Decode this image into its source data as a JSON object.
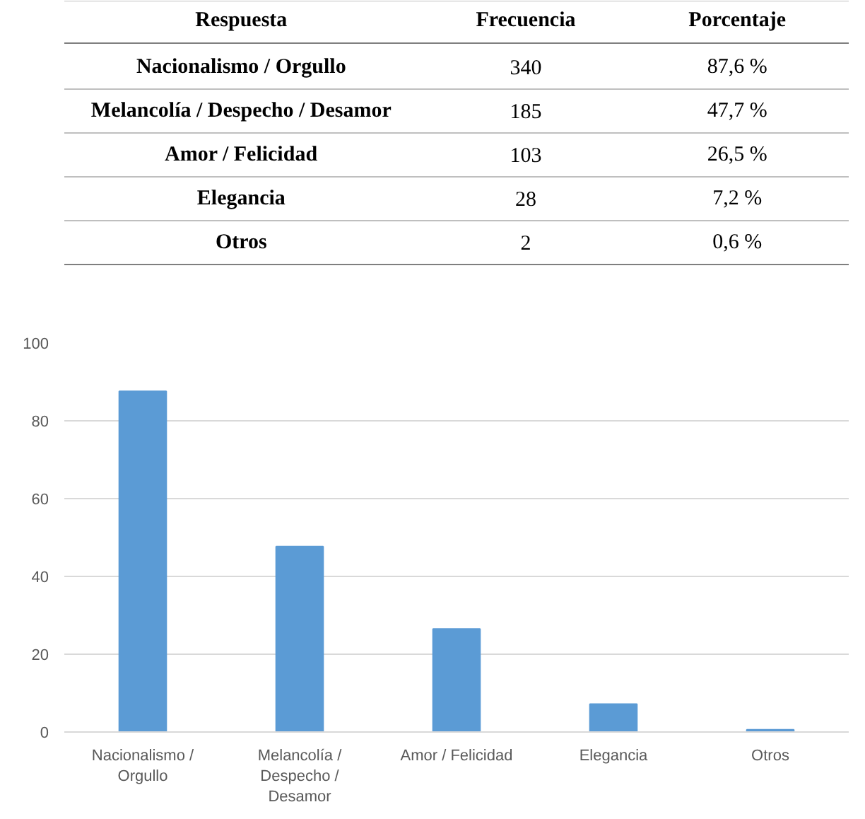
{
  "chart_data": [
    {
      "type": "other",
      "xlabel": "Respuesta",
      "categories": [
        "Nacionalismo / Orgullo",
        "Melancolía / Despecho / Desamor",
        "Amor / Felicidad",
        "Elegancia",
        "Otros"
      ],
      "data_labels": true,
      "series": [
        {
          "name": "Frecuencia",
          "values": [
            340,
            185,
            103,
            28,
            2
          ]
        },
        {
          "name": "Porcentaje",
          "values": [
            87.6,
            47.7,
            26.5,
            7.2,
            0.6
          ],
          "value_labels": [
            "87,6 %",
            "47,7 %",
            "26,5 %",
            "7,2 %",
            "0,6 %"
          ]
        }
      ]
    },
    {
      "type": "bar",
      "categories": [
        "Nacionalismo / Orgullo",
        "Melancolía / Despecho / Desamor",
        "Amor / Felicidad",
        "Elegancia",
        "Otros"
      ],
      "values": [
        87.6,
        47.7,
        26.5,
        7.2,
        0.6
      ],
      "color": "#5b9bd5",
      "ylim": [
        0,
        100
      ],
      "yticks": [
        0,
        20,
        40,
        60,
        80,
        100
      ],
      "grid": "y"
    }
  ]
}
